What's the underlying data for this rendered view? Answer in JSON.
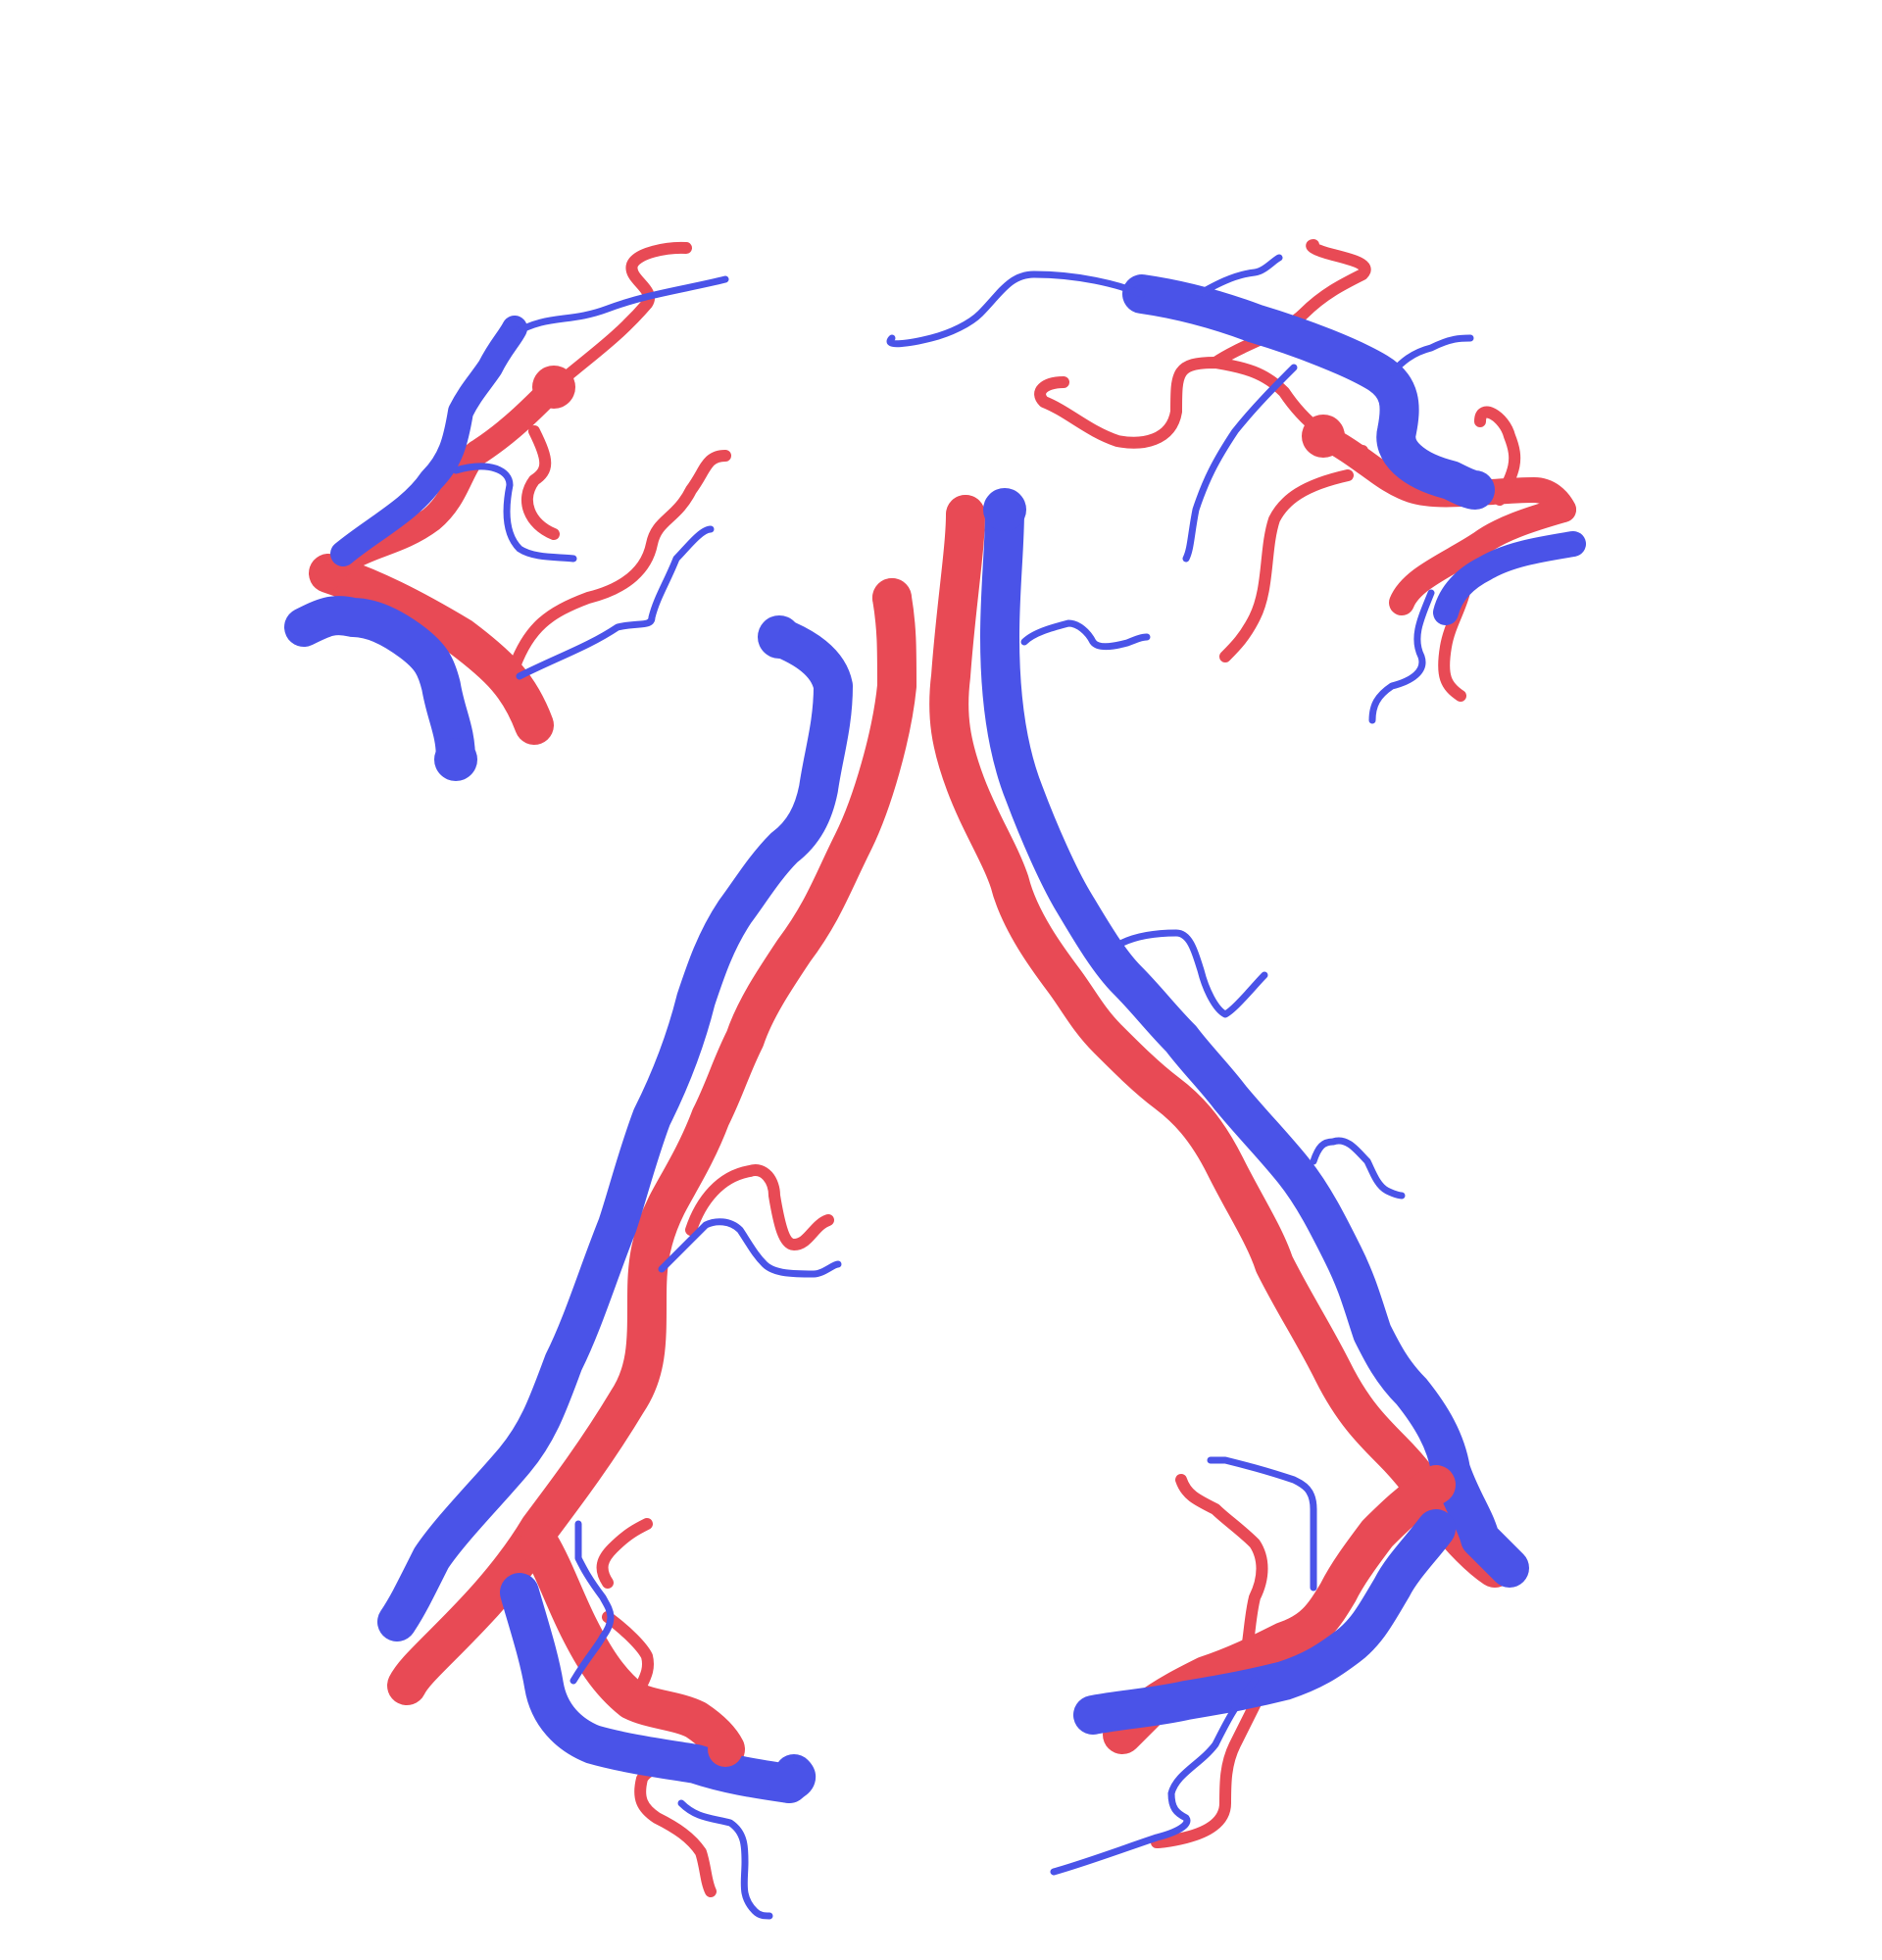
{
  "colors": {
    "background": "#ffffff",
    "artery": "#e84a55",
    "vein": "#4a53e8"
  },
  "legend": {}
}
